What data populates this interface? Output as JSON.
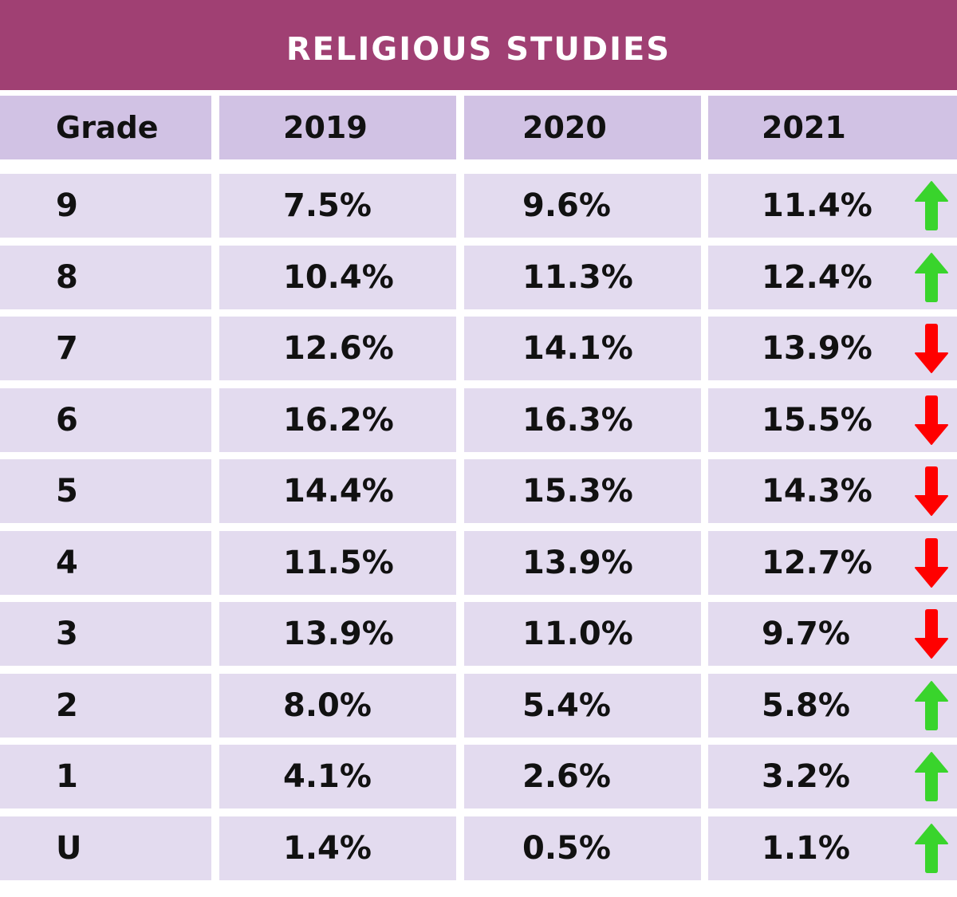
{
  "title": "RELIGIOUS STUDIES",
  "headers": [
    "Grade",
    "2019",
    "2020",
    "2021"
  ],
  "colors": {
    "title_bg": "#a04073",
    "header_bg": "#d1c2e4",
    "row_bg": "#e3dbef",
    "arrow_up": "#39d42c",
    "arrow_down": "#ff0000"
  },
  "chart_data": {
    "type": "table",
    "title": "RELIGIOUS STUDIES",
    "columns": [
      "Grade",
      "2019",
      "2020",
      "2021"
    ],
    "rows": [
      {
        "grade": "9",
        "y2019": "7.5%",
        "y2020": "9.6%",
        "y2021": "11.4%",
        "trend": "up"
      },
      {
        "grade": "8",
        "y2019": "10.4%",
        "y2020": "11.3%",
        "y2021": "12.4%",
        "trend": "up"
      },
      {
        "grade": "7",
        "y2019": "12.6%",
        "y2020": "14.1%",
        "y2021": "13.9%",
        "trend": "down"
      },
      {
        "grade": "6",
        "y2019": "16.2%",
        "y2020": "16.3%",
        "y2021": "15.5%",
        "trend": "down"
      },
      {
        "grade": "5",
        "y2019": "14.4%",
        "y2020": "15.3%",
        "y2021": "14.3%",
        "trend": "down"
      },
      {
        "grade": "4",
        "y2019": "11.5%",
        "y2020": "13.9%",
        "y2021": "12.7%",
        "trend": "down"
      },
      {
        "grade": "3",
        "y2019": "13.9%",
        "y2020": "11.0%",
        "y2021": "9.7%",
        "trend": "down"
      },
      {
        "grade": "2",
        "y2019": "8.0%",
        "y2020": "5.4%",
        "y2021": "5.8%",
        "trend": "up"
      },
      {
        "grade": "1",
        "y2019": "4.1%",
        "y2020": "2.6%",
        "y2021": "3.2%",
        "trend": "up"
      },
      {
        "grade": "U",
        "y2019": "1.4%",
        "y2020": "0.5%",
        "y2021": "1.1%",
        "trend": "up"
      }
    ]
  }
}
